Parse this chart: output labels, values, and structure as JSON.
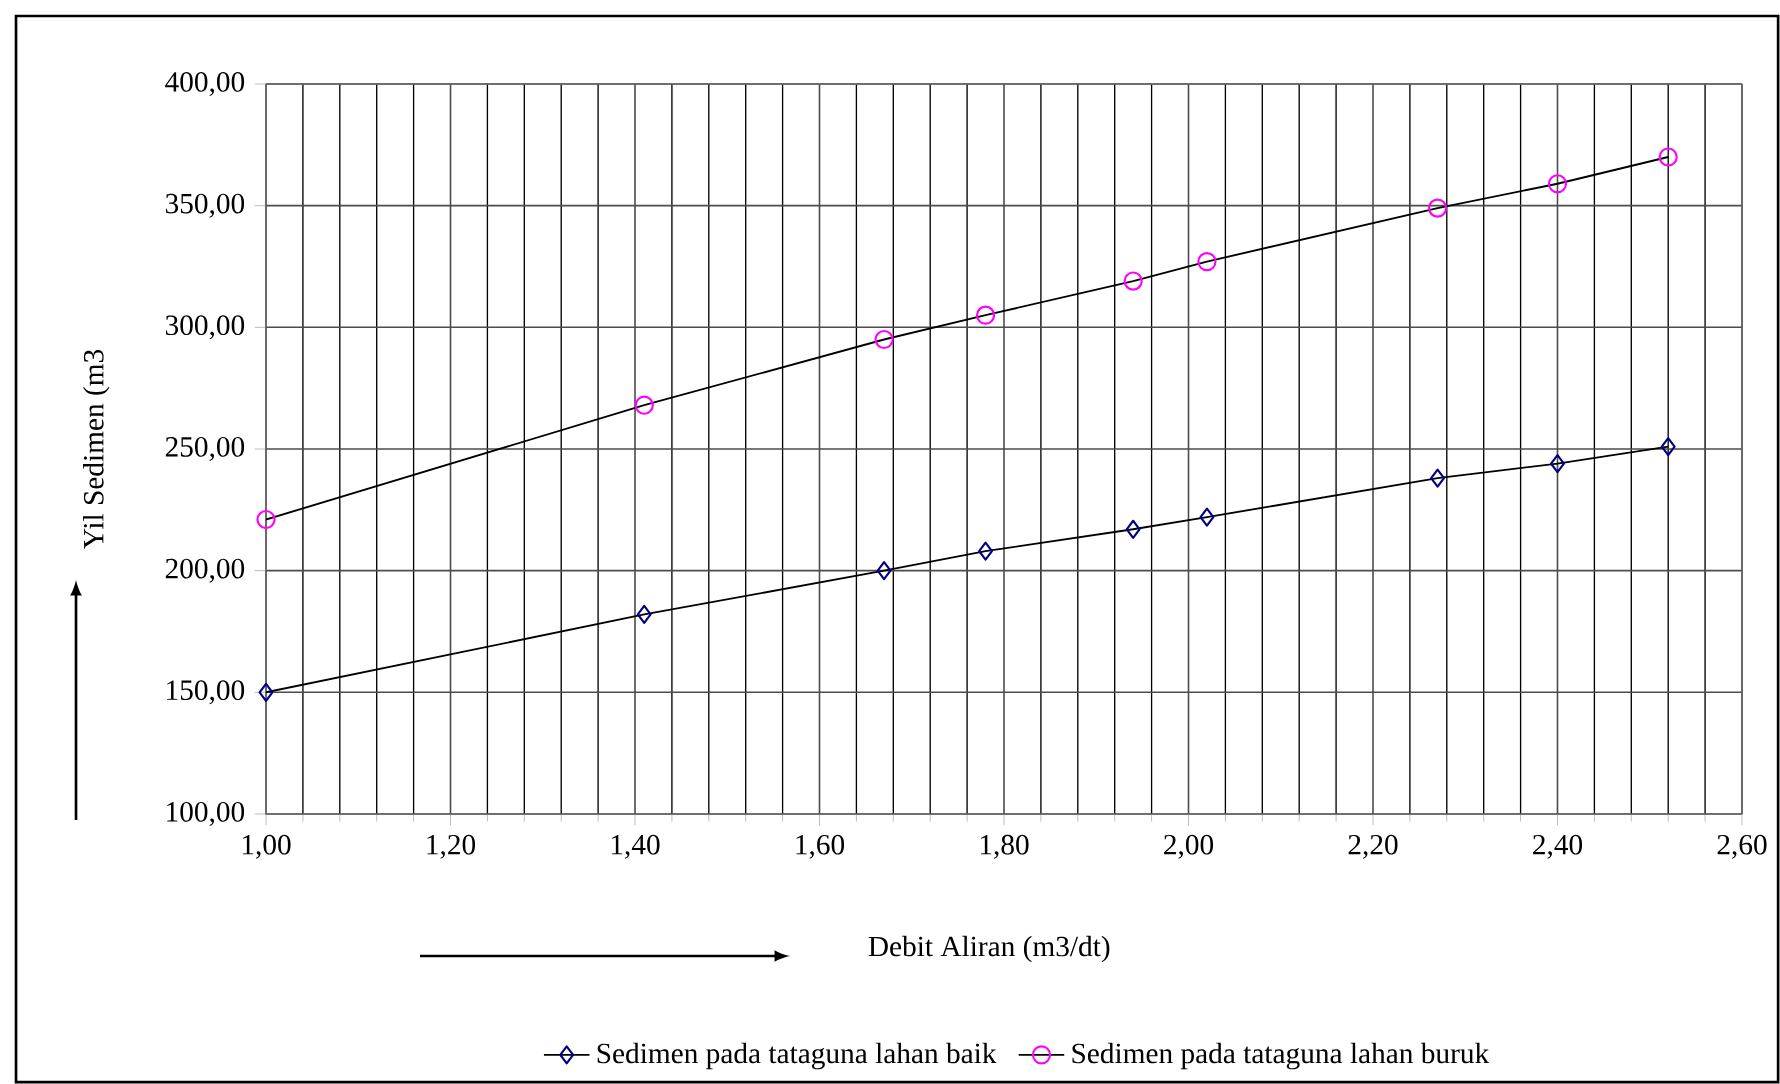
{
  "chart_data": {
    "type": "line",
    "xlabel": "Debit Aliran (m3/dt)",
    "ylabel": "Yil Sedimen (m3",
    "xlim": [
      1.0,
      2.6
    ],
    "xticks": [
      {
        "value": 1.0,
        "label": "1,00"
      },
      {
        "value": 1.2,
        "label": "1,20"
      },
      {
        "value": 1.4,
        "label": "1,40"
      },
      {
        "value": 1.6,
        "label": "1,60"
      },
      {
        "value": 1.8,
        "label": "1,80"
      },
      {
        "value": 2.0,
        "label": "2,00"
      },
      {
        "value": 2.2,
        "label": "2,20"
      },
      {
        "value": 2.4,
        "label": "2,40"
      },
      {
        "value": 2.6,
        "label": "2,60"
      }
    ],
    "ylim": [
      100,
      400
    ],
    "yticks": [
      {
        "value": 100,
        "label": "100,00"
      },
      {
        "value": 150,
        "label": "150,00"
      },
      {
        "value": 200,
        "label": "200,00"
      },
      {
        "value": 250,
        "label": "250,00"
      },
      {
        "value": 300,
        "label": "300,00"
      },
      {
        "value": 350,
        "label": "350,00"
      },
      {
        "value": 400,
        "label": "400,00"
      }
    ],
    "grid": true,
    "legend": "bottom",
    "line_style": "solid",
    "x": [
      1.0,
      1.41,
      1.67,
      1.78,
      1.94,
      2.02,
      2.27,
      2.4,
      2.52
    ],
    "series": [
      {
        "name": "Sedimen pada tataguna lahan baik",
        "color": "#000080",
        "marker": "diamond",
        "values": [
          150,
          182,
          200,
          208,
          217,
          222,
          238,
          244,
          251
        ]
      },
      {
        "name": "Sedimen pada tataguna lahan buruk",
        "color": "#ff00ff",
        "marker": "circle",
        "values": [
          221,
          268,
          295,
          305,
          319,
          327,
          349,
          359,
          370
        ]
      }
    ]
  }
}
